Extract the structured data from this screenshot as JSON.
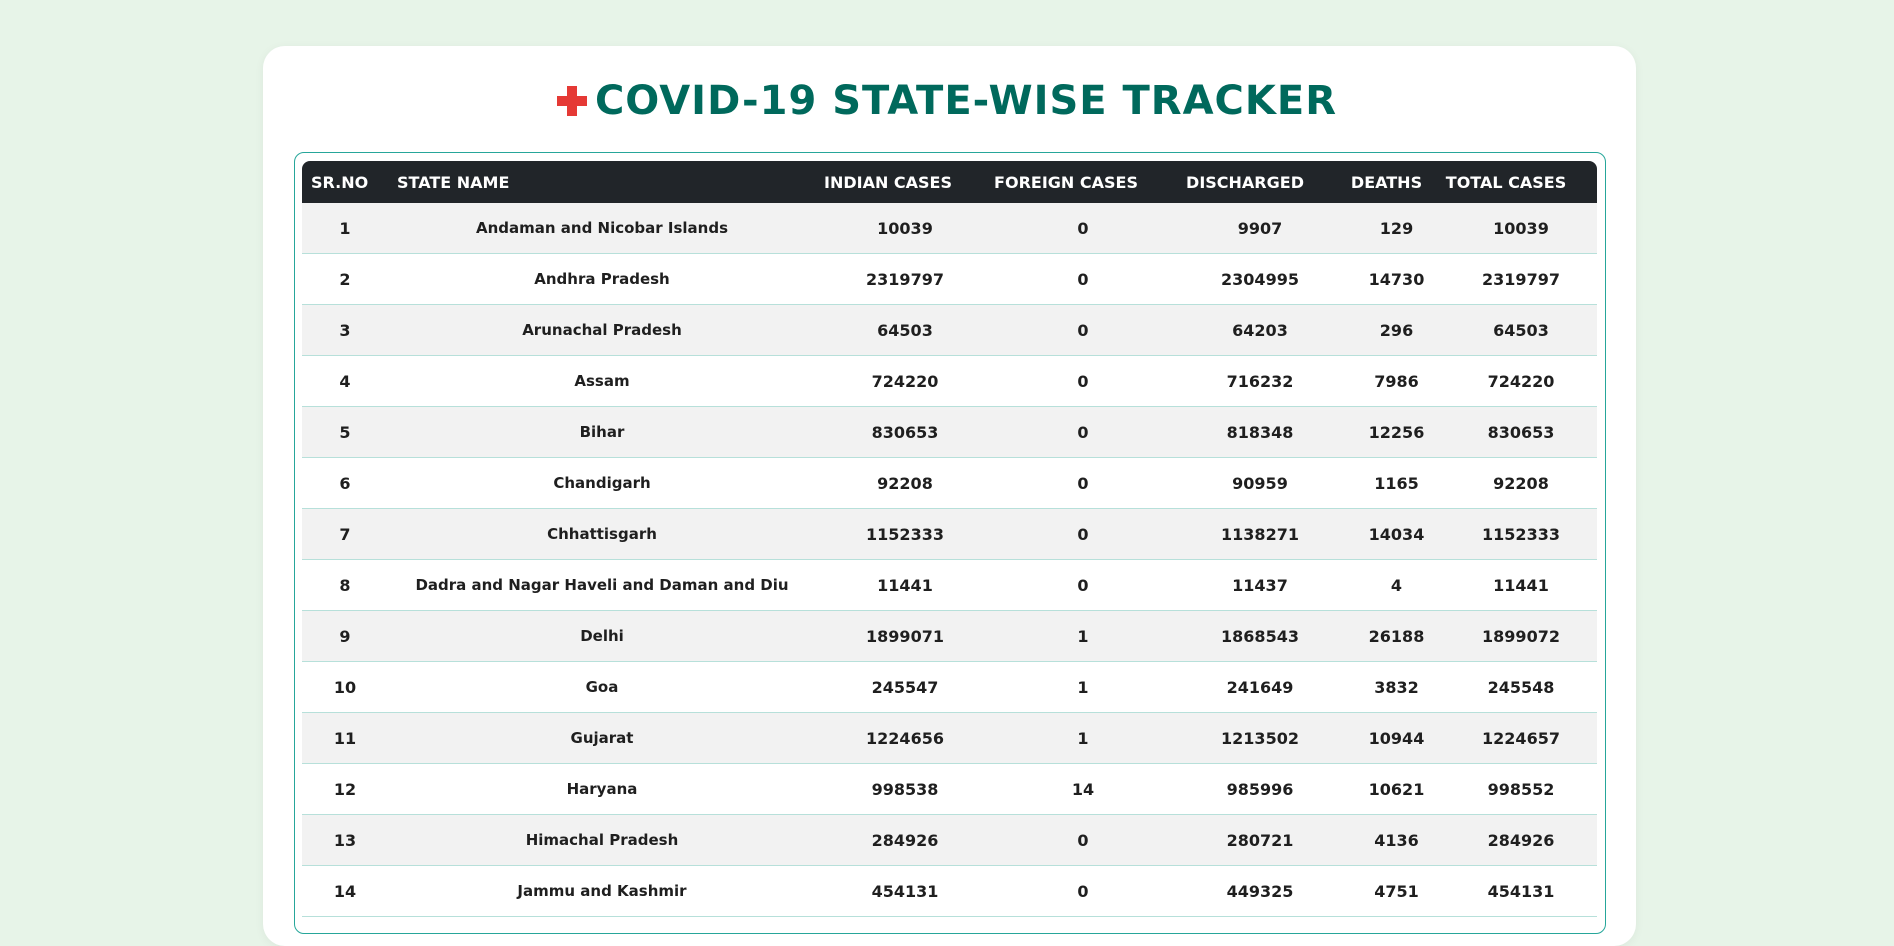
{
  "page": {
    "title": "COVID-19 STATE-WISE TRACKER",
    "title_icon": "red-cross-icon"
  },
  "colors": {
    "background": "#e7f4e8",
    "title": "#00695c",
    "cross": "#e53935",
    "header_bg": "#212529",
    "border": "#26a69a"
  },
  "table": {
    "headers": [
      "SR.NO",
      "STATE NAME",
      "INDIAN CASES",
      "FOREIGN CASES",
      "DISCHARGED",
      "DEATHS",
      "TOTAL CASES"
    ],
    "rows": [
      [
        "1",
        "Andaman and Nicobar Islands",
        "10039",
        "0",
        "9907",
        "129",
        "10039"
      ],
      [
        "2",
        "Andhra Pradesh",
        "2319797",
        "0",
        "2304995",
        "14730",
        "2319797"
      ],
      [
        "3",
        "Arunachal Pradesh",
        "64503",
        "0",
        "64203",
        "296",
        "64503"
      ],
      [
        "4",
        "Assam",
        "724220",
        "0",
        "716232",
        "7986",
        "724220"
      ],
      [
        "5",
        "Bihar",
        "830653",
        "0",
        "818348",
        "12256",
        "830653"
      ],
      [
        "6",
        "Chandigarh",
        "92208",
        "0",
        "90959",
        "1165",
        "92208"
      ],
      [
        "7",
        "Chhattisgarh",
        "1152333",
        "0",
        "1138271",
        "14034",
        "1152333"
      ],
      [
        "8",
        "Dadra and Nagar Haveli and Daman and Diu",
        "11441",
        "0",
        "11437",
        "4",
        "11441"
      ],
      [
        "9",
        "Delhi",
        "1899071",
        "1",
        "1868543",
        "26188",
        "1899072"
      ],
      [
        "10",
        "Goa",
        "245547",
        "1",
        "241649",
        "3832",
        "245548"
      ],
      [
        "11",
        "Gujarat",
        "1224656",
        "1",
        "1213502",
        "10944",
        "1224657"
      ],
      [
        "12",
        "Haryana",
        "998538",
        "14",
        "985996",
        "10621",
        "998552"
      ],
      [
        "13",
        "Himachal Pradesh",
        "284926",
        "0",
        "280721",
        "4136",
        "284926"
      ],
      [
        "14",
        "Jammu and Kashmir",
        "454131",
        "0",
        "449325",
        "4751",
        "454131"
      ]
    ]
  }
}
